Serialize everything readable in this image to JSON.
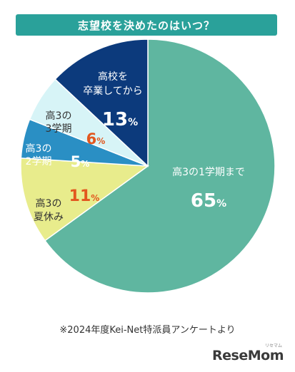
{
  "title": "志望校を決めたのはいつ？",
  "colors": {
    "title_bg": "#2aa19a",
    "label_dark": "#ffffff",
    "label_orange": "#e2571f",
    "label_navy": "#0d3b7a"
  },
  "chart_data": {
    "type": "pie",
    "start": "12 o'clock",
    "direction": "clockwise",
    "slices": [
      {
        "label_lines": [
          "高3の1学期まで"
        ],
        "value": 65,
        "pct": "65",
        "unit": "%",
        "color": "#5fb6a0",
        "label_color": "#ffffff",
        "value_color": "#ffffff"
      },
      {
        "label_lines": [
          "高3の",
          "夏休み"
        ],
        "value": 11,
        "pct": "11",
        "unit": "%",
        "color": "#e8ec8c",
        "label_color": "#333333",
        "value_color": "#e2571f"
      },
      {
        "label_lines": [
          "高3の",
          "2学期"
        ],
        "value": 5,
        "pct": "5",
        "unit": "%",
        "color": "#2a8fc4",
        "label_color": "#ffffff",
        "value_color": "#ffffff"
      },
      {
        "label_lines": [
          "高3の",
          "3学期"
        ],
        "value": 6,
        "pct": "6",
        "unit": "%",
        "color": "#d7f4f7",
        "label_color": "#333333",
        "value_color": "#e2571f"
      },
      {
        "label_lines": [
          "高校を",
          "卒業してから"
        ],
        "value": 13,
        "pct": "13",
        "unit": "%",
        "color": "#0c3a7c",
        "label_color": "#ffffff",
        "value_color": "#ffffff"
      }
    ]
  },
  "footer": {
    "source": "※2024年度Kei-Net特派員アンケートより",
    "logo": "ReseMom",
    "logo_sub": "リセマム"
  }
}
